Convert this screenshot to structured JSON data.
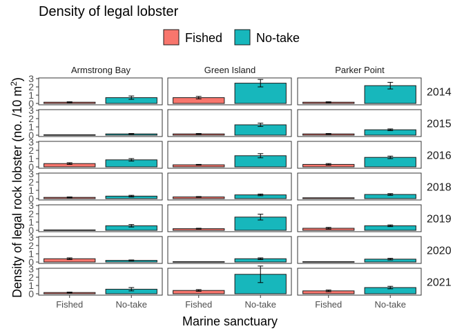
{
  "chart_data": {
    "type": "bar",
    "title": "Density of legal lobster",
    "xlabel": "Marine sanctuary",
    "ylabel": "Density of legal rock lobster (no. /10 m",
    "ylabel_superscript": "2",
    "ylabel_close": ")",
    "ylim": [
      0,
      3
    ],
    "yticks": [
      "0",
      "1",
      "2",
      "3"
    ],
    "categories": [
      "Fished",
      "No-take"
    ],
    "legend": {
      "position": "top",
      "entries": [
        {
          "name": "Fished",
          "color": "#F8766D"
        },
        {
          "name": "No-take",
          "color": "#17B7BC"
        }
      ]
    },
    "panel_columns": [
      "Armstrong Bay",
      "Green Island",
      "Parker Point"
    ],
    "panel_rows": [
      "2014",
      "2015",
      "2016",
      "2018",
      "2019",
      "2020",
      "2021"
    ],
    "series": [
      {
        "year": "2014",
        "site": "Armstrong Bay",
        "values": [
          0.15,
          0.7
        ],
        "errors": [
          0.05,
          0.2
        ]
      },
      {
        "year": "2014",
        "site": "Green Island",
        "values": [
          0.7,
          2.45
        ],
        "errors": [
          0.15,
          0.45
        ]
      },
      {
        "year": "2014",
        "site": "Parker Point",
        "values": [
          0.15,
          2.15
        ],
        "errors": [
          0.05,
          0.4
        ]
      },
      {
        "year": "2015",
        "site": "Armstrong Bay",
        "values": [
          0.05,
          0.15
        ],
        "errors": [
          0.03,
          0.05
        ]
      },
      {
        "year": "2015",
        "site": "Green Island",
        "values": [
          0.15,
          1.25
        ],
        "errors": [
          0.05,
          0.2
        ]
      },
      {
        "year": "2015",
        "site": "Parker Point",
        "values": [
          0.15,
          0.65
        ],
        "errors": [
          0.05,
          0.1
        ]
      },
      {
        "year": "2016",
        "site": "Armstrong Bay",
        "values": [
          0.4,
          0.85
        ],
        "errors": [
          0.1,
          0.15
        ]
      },
      {
        "year": "2016",
        "site": "Green Island",
        "values": [
          0.25,
          1.35
        ],
        "errors": [
          0.05,
          0.25
        ]
      },
      {
        "year": "2016",
        "site": "Parker Point",
        "values": [
          0.3,
          1.15
        ],
        "errors": [
          0.1,
          0.15
        ]
      },
      {
        "year": "2018",
        "site": "Armstrong Bay",
        "values": [
          0.15,
          0.3
        ],
        "errors": [
          0.05,
          0.1
        ]
      },
      {
        "year": "2018",
        "site": "Green Island",
        "values": [
          0.2,
          0.45
        ],
        "errors": [
          0.05,
          0.1
        ]
      },
      {
        "year": "2018",
        "site": "Parker Point",
        "values": [
          0.1,
          0.5
        ],
        "errors": [
          0.03,
          0.1
        ]
      },
      {
        "year": "2019",
        "site": "Armstrong Bay",
        "values": [
          0.05,
          0.55
        ],
        "errors": [
          0.03,
          0.15
        ]
      },
      {
        "year": "2019",
        "site": "Green Island",
        "values": [
          0.2,
          1.6
        ],
        "errors": [
          0.05,
          0.35
        ]
      },
      {
        "year": "2019",
        "site": "Parker Point",
        "values": [
          0.25,
          0.55
        ],
        "errors": [
          0.1,
          0.1
        ]
      },
      {
        "year": "2020",
        "site": "Armstrong Bay",
        "values": [
          0.4,
          0.2
        ],
        "errors": [
          0.1,
          0.05
        ]
      },
      {
        "year": "2020",
        "site": "Green Island",
        "values": [
          0.05,
          0.4
        ],
        "errors": [
          0.02,
          0.1
        ]
      },
      {
        "year": "2020",
        "site": "Parker Point",
        "values": [
          0.05,
          0.35
        ],
        "errors": [
          0.02,
          0.1
        ]
      },
      {
        "year": "2021",
        "site": "Armstrong Bay",
        "values": [
          0.15,
          0.55
        ],
        "errors": [
          0.05,
          0.2
        ]
      },
      {
        "year": "2021",
        "site": "Green Island",
        "values": [
          0.4,
          2.35
        ],
        "errors": [
          0.1,
          1.0
        ]
      },
      {
        "year": "2021",
        "site": "Parker Point",
        "values": [
          0.35,
          0.75
        ],
        "errors": [
          0.1,
          0.15
        ]
      }
    ]
  }
}
